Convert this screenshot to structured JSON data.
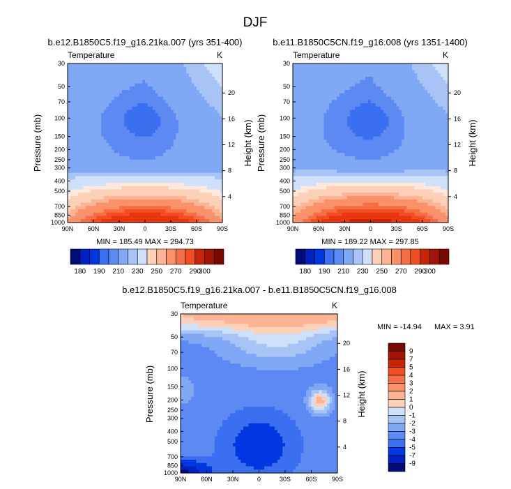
{
  "figure": {
    "title": "DJF"
  },
  "palettes": {
    "abs": [
      "#000b7a",
      "#0020c0",
      "#0037e0",
      "#1e55ee",
      "#3a6fef",
      "#5c8af2",
      "#80a8f5",
      "#a8c4f7",
      "#cfe0fa",
      "#ffe8dc",
      "#fdd0b8",
      "#fcb494",
      "#fa9169",
      "#f66e45",
      "#f24e22",
      "#e8360d",
      "#c82507",
      "#a01503",
      "#780800"
    ],
    "diff": [
      "#000b7a",
      "#0020c0",
      "#0037e0",
      "#1e55ee",
      "#3a6fef",
      "#5c8af2",
      "#80a8f5",
      "#a8c4f7",
      "#cfe0fa",
      "#ffe8dc",
      "#fdd0b8",
      "#fcb494",
      "#fa9169",
      "#f66e45",
      "#f24e22",
      "#e8360d",
      "#c82507",
      "#a01503",
      "#780800"
    ]
  },
  "chart_data": [
    {
      "id": "panel-a",
      "type": "contour",
      "title": "b.e12.B1850C5.f19_g16.21ka.007 (yrs 351-400)",
      "variable": "Temperature",
      "units": "K",
      "ylabel": "Pressure (mb)",
      "ylabel_right": "Height (km)",
      "x_ticks": [
        "90N",
        "60N",
        "30N",
        "0",
        "30S",
        "60S",
        "90S"
      ],
      "p_ticks": [
        "30",
        "50",
        "70",
        "100",
        "150",
        "200",
        "250",
        "300",
        "400",
        "500",
        "700",
        "850",
        "1000"
      ],
      "p_values": [
        30,
        50,
        70,
        100,
        150,
        200,
        250,
        300,
        400,
        500,
        700,
        850,
        1000
      ],
      "height_ticks": [
        "4",
        "8",
        "12",
        "16",
        "20"
      ],
      "height_values": [
        4,
        8,
        12,
        16,
        20
      ],
      "stats": "MIN = 185.49   MAX = 294.73",
      "min": 185.49,
      "max": 294.73,
      "levels": [
        180,
        185,
        190,
        195,
        200,
        205,
        210,
        215,
        220,
        225,
        230,
        235,
        240,
        245,
        250,
        255,
        260,
        265,
        270,
        275,
        280,
        285,
        290,
        295,
        300,
        305
      ],
      "colorbar_labels": [
        "180",
        "190",
        "210",
        "230",
        "250",
        "270",
        "290",
        "300"
      ]
    },
    {
      "id": "panel-b",
      "type": "contour",
      "title": "b.e11.B1850C5CN.f19_g16.008 (yrs 1351-1400)",
      "variable": "Temperature",
      "units": "K",
      "ylabel": "Pressure (mb)",
      "ylabel_right": "Height (km)",
      "x_ticks": [
        "90N",
        "60N",
        "30N",
        "0",
        "30S",
        "60S",
        "90S"
      ],
      "p_ticks": [
        "30",
        "50",
        "70",
        "100",
        "150",
        "200",
        "250",
        "300",
        "400",
        "500",
        "700",
        "850",
        "1000"
      ],
      "p_values": [
        30,
        50,
        70,
        100,
        150,
        200,
        250,
        300,
        400,
        500,
        700,
        850,
        1000
      ],
      "height_ticks": [
        "4",
        "8",
        "12",
        "16",
        "20"
      ],
      "height_values": [
        4,
        8,
        12,
        16,
        20
      ],
      "stats": "MIN = 189.22   MAX = 297.85",
      "min": 189.22,
      "max": 297.85,
      "levels": [
        180,
        185,
        190,
        195,
        200,
        205,
        210,
        215,
        220,
        225,
        230,
        235,
        240,
        245,
        250,
        255,
        260,
        265,
        270,
        275,
        280,
        285,
        290,
        295,
        300,
        305
      ],
      "colorbar_labels": [
        "180",
        "190",
        "210",
        "230",
        "250",
        "270",
        "290",
        "300"
      ]
    },
    {
      "id": "panel-diff",
      "type": "contour",
      "title": "b.e12.B1850C5.f19_g16.21ka.007 - b.e11.B1850C5CN.f19_g16.008",
      "variable": "Temperature",
      "units": "K",
      "ylabel": "Pressure (mb)",
      "ylabel_right": "Height (km)",
      "x_ticks": [
        "90N",
        "60N",
        "30N",
        "0",
        "30S",
        "60S",
        "90S"
      ],
      "p_ticks": [
        "30",
        "50",
        "70",
        "100",
        "150",
        "200",
        "250",
        "300",
        "400",
        "500",
        "700",
        "850",
        "1000"
      ],
      "p_values": [
        30,
        50,
        70,
        100,
        150,
        200,
        250,
        300,
        400,
        500,
        700,
        850,
        1000
      ],
      "height_ticks": [
        "4",
        "8",
        "12",
        "16",
        "20"
      ],
      "height_values": [
        4,
        8,
        12,
        16,
        20
      ],
      "stats_min": "MIN = -14.94",
      "stats_max": "MAX =   3.91",
      "min": -14.94,
      "max": 3.91,
      "levels": [
        -9,
        -7,
        -5,
        -4,
        -3,
        -2,
        -1,
        0,
        1,
        2,
        3,
        4,
        5,
        7,
        9
      ],
      "colorbar_labels": [
        "9",
        "7",
        "5",
        "4",
        "3",
        "2",
        "1",
        "0",
        "-1",
        "-2",
        "-3",
        "-4",
        "-5",
        "-7",
        "-9"
      ]
    }
  ]
}
